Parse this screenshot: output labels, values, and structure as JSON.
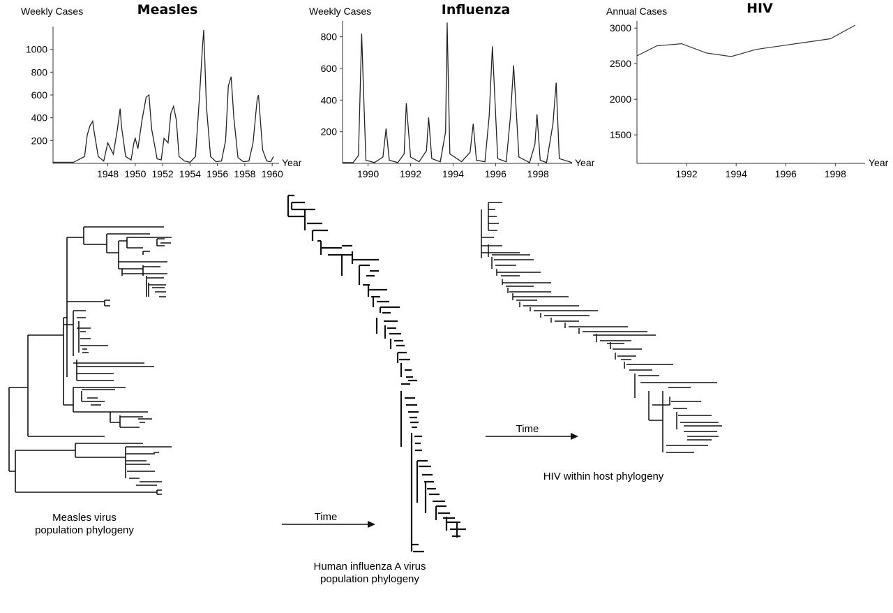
{
  "charts_meta": {
    "line_color": "#222222",
    "tree_color": "#111111"
  },
  "chart_data": [
    {
      "type": "line",
      "title": "Measles",
      "ylabel": "Weekly Cases",
      "xlabel": "Year",
      "xticks": [
        "1948",
        "1950",
        "1952",
        "1954",
        "1956",
        "1958",
        "1960"
      ],
      "yticks": [
        "200",
        "400",
        "600",
        "800",
        "1000"
      ],
      "xlim": [
        1944,
        1960.5
      ],
      "ylim": [
        0,
        1200
      ],
      "series": [
        {
          "x": [
            1944.0,
            1945.5,
            1946.3,
            1946.5,
            1946.7,
            1946.9,
            1947.0,
            1947.3,
            1947.7,
            1948.0,
            1948.2,
            1948.4,
            1948.7,
            1948.9,
            1949.0,
            1949.3,
            1949.7,
            1949.9,
            1950.0,
            1950.2,
            1950.5,
            1950.8,
            1951.0,
            1951.2,
            1951.6,
            1951.9,
            1952.1,
            1952.4,
            1952.6,
            1952.8,
            1953.0,
            1953.2,
            1953.6,
            1954.0,
            1954.4,
            1954.7,
            1954.9,
            1955.0,
            1955.2,
            1955.5,
            1955.9,
            1956.3,
            1956.6,
            1956.8,
            1957.0,
            1957.2,
            1957.5,
            1957.9,
            1958.3,
            1958.6,
            1958.9,
            1959.0,
            1959.3,
            1959.6,
            1959.9,
            1960.1
          ],
          "y": [
            10,
            10,
            60,
            250,
            330,
            370,
            280,
            60,
            20,
            180,
            130,
            80,
            300,
            480,
            320,
            60,
            30,
            180,
            220,
            130,
            380,
            580,
            600,
            300,
            40,
            30,
            220,
            180,
            440,
            500,
            380,
            60,
            20,
            10,
            60,
            600,
            1000,
            1170,
            500,
            60,
            15,
            20,
            200,
            680,
            760,
            400,
            50,
            15,
            20,
            180,
            560,
            600,
            120,
            20,
            15,
            60
          ]
        }
      ]
    },
    {
      "type": "line",
      "title": "Influenza",
      "ylabel": "Weekly Cases",
      "xlabel": "Year",
      "xticks": [
        "1990",
        "1992",
        "1994",
        "1996",
        "1998"
      ],
      "yticks": [
        "200",
        "400",
        "600",
        "800"
      ],
      "xlim": [
        1988.8,
        1999.6
      ],
      "ylim": [
        0,
        900
      ],
      "series": [
        {
          "x": [
            1988.8,
            1989.3,
            1989.55,
            1989.7,
            1989.8,
            1989.9,
            1990.3,
            1990.7,
            1990.85,
            1991.0,
            1991.4,
            1991.7,
            1991.8,
            1992.0,
            1992.4,
            1992.75,
            1992.85,
            1993.0,
            1993.4,
            1993.65,
            1993.72,
            1993.85,
            1994.4,
            1994.8,
            1994.95,
            1995.1,
            1995.5,
            1995.7,
            1995.85,
            1996.1,
            1996.5,
            1996.7,
            1996.85,
            1997.1,
            1997.6,
            1997.85,
            1997.95,
            1998.1,
            1998.4,
            1998.7,
            1998.85,
            1999.0,
            1999.6
          ],
          "y": [
            5,
            5,
            50,
            820,
            400,
            20,
            5,
            40,
            220,
            20,
            5,
            60,
            380,
            40,
            10,
            80,
            290,
            30,
            10,
            200,
            890,
            60,
            10,
            70,
            250,
            20,
            10,
            300,
            740,
            30,
            10,
            300,
            620,
            40,
            5,
            120,
            310,
            20,
            5,
            250,
            510,
            30,
            5
          ]
        }
      ]
    },
    {
      "type": "line",
      "title": "HIV",
      "ylabel": "Annual Cases",
      "xlabel": "Year",
      "xticks": [
        "1992",
        "1994",
        "1996",
        "1998"
      ],
      "yticks": [
        "1500",
        "2000",
        "2500",
        "3000"
      ],
      "xlim": [
        1990,
        1999.2
      ],
      "ylim": [
        1100,
        3100
      ],
      "series": [
        {
          "x": [
            1990,
            1990.8,
            1991.8,
            1992.8,
            1993.8,
            1994.8,
            1995.8,
            1996.8,
            1997.8,
            1998.8
          ],
          "y": [
            2610,
            2750,
            2780,
            2650,
            2600,
            2700,
            2750,
            2800,
            2850,
            3040
          ]
        }
      ]
    }
  ],
  "phylogenies": {
    "measles": {
      "caption_1": "Measles virus",
      "caption_2": "population phylogeny"
    },
    "influenza": {
      "caption_1": "Human influenza A virus",
      "caption_2": "population phylogeny",
      "time_label": "Time"
    },
    "hiv": {
      "caption": "HIV within host phylogeny",
      "time_label": "Time"
    }
  }
}
